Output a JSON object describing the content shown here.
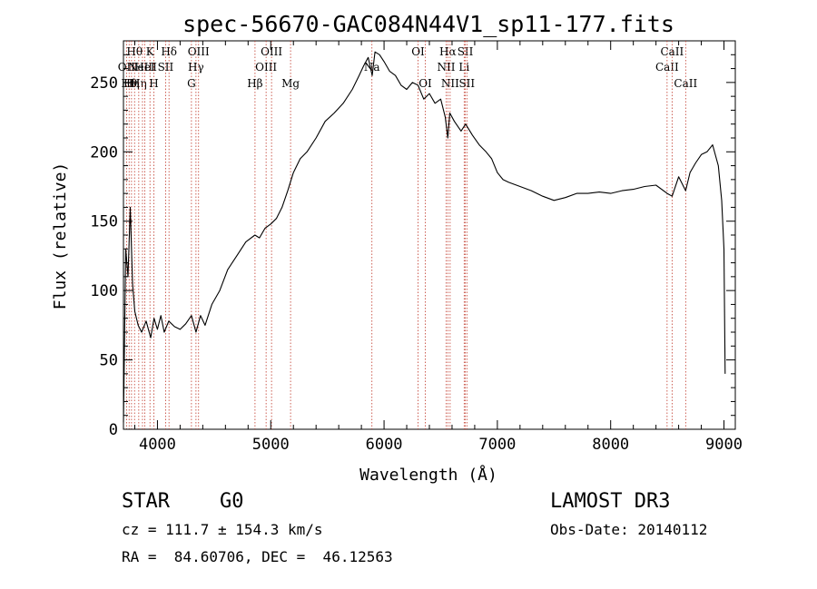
{
  "colors": {
    "line": "#000000",
    "marker": "#c0392b",
    "background": "#ffffff"
  },
  "info": {
    "class": "STAR",
    "subclass": "G0",
    "survey": "LAMOST DR3",
    "cz": "cz = 111.7 ± 154.3 km/s",
    "obs_date": "Obs-Date: 20140112",
    "coords": "RA =  84.60706, DEC =  46.12563"
  },
  "chart_data": {
    "type": "line",
    "title": "spec-56670-GAC084N44V1_sp11-177.fits",
    "xlabel": "Wavelength (Å)",
    "ylabel": "Flux (relative)",
    "xlim": [
      3700,
      9100
    ],
    "ylim": [
      0,
      280
    ],
    "xticks": [
      4000,
      5000,
      6000,
      7000,
      8000,
      9000
    ],
    "xtick_labels": [
      "4000",
      "5000",
      "6000",
      "7000",
      "8000",
      "9000"
    ],
    "yticks": [
      0,
      50,
      100,
      150,
      200,
      250
    ],
    "ytick_labels": [
      "0",
      "50",
      "100",
      "150",
      "200",
      "250"
    ],
    "series": [
      {
        "name": "flux",
        "x": [
          3700,
          3720,
          3740,
          3760,
          3780,
          3800,
          3830,
          3860,
          3900,
          3940,
          3970,
          4000,
          4030,
          4060,
          4100,
          4150,
          4200,
          4250,
          4300,
          4340,
          4380,
          4420,
          4480,
          4550,
          4620,
          4700,
          4780,
          4860,
          4900,
          4950,
          5000,
          5050,
          5100,
          5150,
          5200,
          5260,
          5320,
          5400,
          5480,
          5560,
          5640,
          5720,
          5780,
          5820,
          5860,
          5895,
          5920,
          5960,
          6000,
          6050,
          6100,
          6150,
          6200,
          6250,
          6300,
          6350,
          6400,
          6450,
          6500,
          6540,
          6563,
          6580,
          6620,
          6680,
          6720,
          6780,
          6840,
          6900,
          6950,
          7000,
          7050,
          7100,
          7200,
          7300,
          7400,
          7500,
          7600,
          7700,
          7800,
          7900,
          8000,
          8100,
          8200,
          8300,
          8400,
          8498,
          8542,
          8600,
          8662,
          8700,
          8750,
          8800,
          8850,
          8900,
          8950,
          8980,
          9000,
          9010
        ],
        "values": [
          5,
          130,
          110,
          160,
          105,
          85,
          75,
          70,
          78,
          66,
          80,
          72,
          82,
          70,
          78,
          74,
          72,
          76,
          82,
          70,
          82,
          75,
          90,
          100,
          115,
          125,
          135,
          140,
          138,
          145,
          148,
          152,
          160,
          172,
          185,
          195,
          200,
          210,
          222,
          228,
          235,
          245,
          255,
          262,
          268,
          255,
          272,
          270,
          265,
          258,
          255,
          248,
          245,
          250,
          248,
          238,
          242,
          235,
          238,
          225,
          210,
          228,
          222,
          215,
          220,
          212,
          205,
          200,
          195,
          185,
          180,
          178,
          175,
          172,
          168,
          165,
          167,
          170,
          170,
          171,
          170,
          172,
          173,
          175,
          176,
          170,
          168,
          182,
          172,
          185,
          192,
          198,
          200,
          205,
          190,
          165,
          130,
          40
        ]
      }
    ],
    "lines": [
      {
        "wave": 3727,
        "label": "OII",
        "row": 2
      },
      {
        "wave": 3750,
        "label": "Hθ",
        "row": 3
      },
      {
        "wave": 3771,
        "label": "Hη",
        "row": 3
      },
      {
        "wave": 3798,
        "label": "Hθ",
        "row": 1
      },
      {
        "wave": 3835,
        "label": "Hη",
        "row": 3
      },
      {
        "wave": 3868,
        "label": "NeIII",
        "row": 2
      },
      {
        "wave": 3889,
        "label": "HeI",
        "row": 2
      },
      {
        "wave": 3934,
        "label": "K",
        "row": 1
      },
      {
        "wave": 3968,
        "label": "H",
        "row": 3
      },
      {
        "wave": 4072,
        "label": "SII",
        "row": 2
      },
      {
        "wave": 4102,
        "label": "Hδ",
        "row": 1
      },
      {
        "wave": 4300,
        "label": "G",
        "row": 3
      },
      {
        "wave": 4340,
        "label": "Hγ",
        "row": 2
      },
      {
        "wave": 4363,
        "label": "OIII",
        "row": 1
      },
      {
        "wave": 4861,
        "label": "Hβ",
        "row": 3
      },
      {
        "wave": 4959,
        "label": "OIII",
        "row": 2
      },
      {
        "wave": 5007,
        "label": "OIII",
        "row": 1
      },
      {
        "wave": 5175,
        "label": "Mg",
        "row": 3
      },
      {
        "wave": 5893,
        "label": "Na",
        "row": 2
      },
      {
        "wave": 6300,
        "label": "OI",
        "row": 1
      },
      {
        "wave": 6364,
        "label": "OI",
        "row": 3
      },
      {
        "wave": 6548,
        "label": "NII",
        "row": 2
      },
      {
        "wave": 6563,
        "label": "Hα",
        "row": 1
      },
      {
        "wave": 6583,
        "label": "NII",
        "row": 3
      },
      {
        "wave": 6707,
        "label": "Li",
        "row": 2
      },
      {
        "wave": 6717,
        "label": "SII",
        "row": 1
      },
      {
        "wave": 6731,
        "label": "SII",
        "row": 3
      },
      {
        "wave": 8498,
        "label": "CaII",
        "row": 2
      },
      {
        "wave": 8542,
        "label": "CaII",
        "row": 1
      },
      {
        "wave": 8662,
        "label": "CaII",
        "row": 3
      }
    ]
  }
}
